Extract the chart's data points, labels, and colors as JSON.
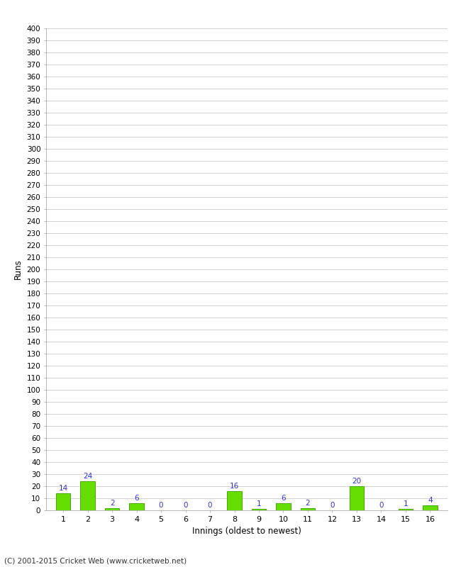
{
  "xlabel": "Innings (oldest to newest)",
  "ylabel": "Runs",
  "categories": [
    "1",
    "2",
    "3",
    "4",
    "5",
    "6",
    "7",
    "8",
    "9",
    "10",
    "11",
    "12",
    "13",
    "14",
    "15",
    "16"
  ],
  "values": [
    14,
    24,
    2,
    6,
    0,
    0,
    0,
    16,
    1,
    6,
    2,
    0,
    20,
    0,
    1,
    4
  ],
  "bar_color": "#66dd00",
  "bar_edge_color": "#44aa00",
  "label_color": "#3333cc",
  "ylim": [
    0,
    400
  ],
  "ytick_step": 10,
  "background_color": "#ffffff",
  "grid_color": "#cccccc",
  "footer": "(C) 2001-2015 Cricket Web (www.cricketweb.net)"
}
